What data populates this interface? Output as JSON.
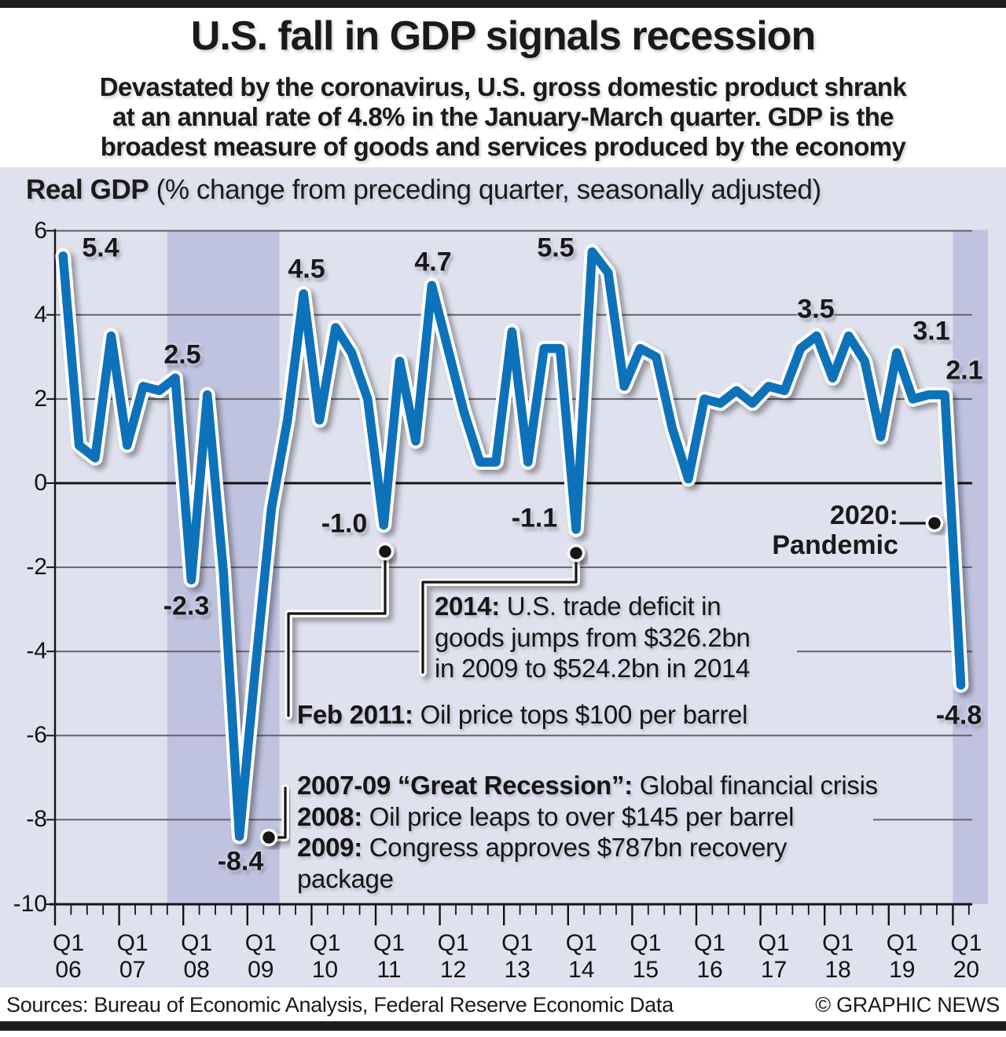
{
  "header": {
    "title": "U.S. fall in GDP signals recession",
    "subtitle_lines": [
      "Devastated by the coronavirus, U.S. gross domestic product shrank",
      "at an annual rate of 4.8% in the January-March quarter. GDP is the",
      "broadest measure of goods and services produced by the economy"
    ]
  },
  "chart_header": {
    "bold": "Real GDP",
    "rest": " (% change from preceding quarter, seasonally adjusted)"
  },
  "chart_data": {
    "type": "line",
    "title": "Real GDP (% change from preceding quarter, seasonally adjusted)",
    "ylim": [
      -10,
      6
    ],
    "y_ticks": [
      6,
      4,
      2,
      0,
      -2,
      -4,
      -6,
      -8,
      -10
    ],
    "x_quarter_label": "Q1",
    "x_years": [
      "06",
      "07",
      "08",
      "09",
      "10",
      "11",
      "12",
      "13",
      "14",
      "15",
      "16",
      "17",
      "18",
      "19",
      "20"
    ],
    "series": {
      "name": "Real GDP % change (annualized) from preceding quarter",
      "start": "2006 Q1",
      "values": [
        5.4,
        0.9,
        0.6,
        3.5,
        0.9,
        2.3,
        2.2,
        2.5,
        -2.3,
        2.1,
        -2.1,
        -8.4,
        -4.4,
        -0.6,
        1.5,
        4.5,
        1.5,
        3.7,
        3.1,
        2.0,
        -1.0,
        2.9,
        1.0,
        4.7,
        3.2,
        1.7,
        0.5,
        0.5,
        3.6,
        0.5,
        3.2,
        3.2,
        -1.1,
        5.5,
        5.0,
        2.3,
        3.2,
        3.0,
        1.3,
        0.1,
        2.0,
        1.9,
        2.2,
        1.9,
        2.3,
        2.2,
        3.2,
        3.5,
        2.5,
        3.5,
        2.9,
        1.1,
        3.1,
        2.0,
        2.1,
        2.1,
        -4.8
      ]
    },
    "recession_bands": [
      {
        "start": "2007 Q4",
        "end": "2009 Q2"
      },
      {
        "start": "2020 Q1",
        "end": "2020 Q1"
      }
    ],
    "point_labels": [
      {
        "label": "5.4",
        "quarter": "2006 Q1"
      },
      {
        "label": "2.5",
        "quarter": "2007 Q4"
      },
      {
        "label": "-2.3",
        "quarter": "2008 Q1"
      },
      {
        "label": "-8.4",
        "quarter": "2008 Q4"
      },
      {
        "label": "4.5",
        "quarter": "2009 Q4"
      },
      {
        "label": "-1.0",
        "quarter": "2011 Q1"
      },
      {
        "label": "4.7",
        "quarter": "2011 Q4"
      },
      {
        "label": "-1.1",
        "quarter": "2014 Q1"
      },
      {
        "label": "5.5",
        "quarter": "2014 Q2"
      },
      {
        "label": "3.5",
        "quarter": "2018 Q2"
      },
      {
        "label": "3.1",
        "quarter": "2019 Q1"
      },
      {
        "label": "2.1",
        "quarter": "2019 Q4"
      },
      {
        "label": "-4.8",
        "quarter": "2020 Q1"
      }
    ],
    "legend": "none",
    "grid": "on"
  },
  "annotations": {
    "pandemic": {
      "lines": [
        "2020:",
        "Pandemic"
      ]
    },
    "trade_deficit": {
      "lines": [
        {
          "b": "2014:",
          "r": " U.S. trade deficit in"
        },
        {
          "b": "",
          "r": "goods jumps from $326.2bn"
        },
        {
          "b": "",
          "r": "in 2009 to $524.2bn in 2014"
        }
      ]
    },
    "oil_2011": {
      "b": "Feb 2011:",
      "r": " Oil price tops $100 per barrel"
    },
    "great_recession": {
      "lines": [
        {
          "b": "2007-09 “Great Recession”:",
          "r": " Global financial crisis"
        },
        {
          "b": "2008:",
          "r": " Oil price leaps to over $145 per barrel"
        },
        {
          "b": "2009:",
          "r": " Congress approves $787bn recovery"
        },
        {
          "b": "",
          "r": "package"
        }
      ]
    }
  },
  "footer": {
    "sources": "Sources: Bureau of Economic Analysis, Federal Reserve Economic Data",
    "credit": "© GRAPHIC NEWS"
  },
  "colors": {
    "line_blue": "#0d72b9",
    "line_casing": "#ffffff",
    "background_lavender": "#dfe1ef",
    "recession_band": "#bfc3e0",
    "gridline": "#63636a",
    "zero_line": "#141414",
    "ink": "#1a1a1a"
  }
}
